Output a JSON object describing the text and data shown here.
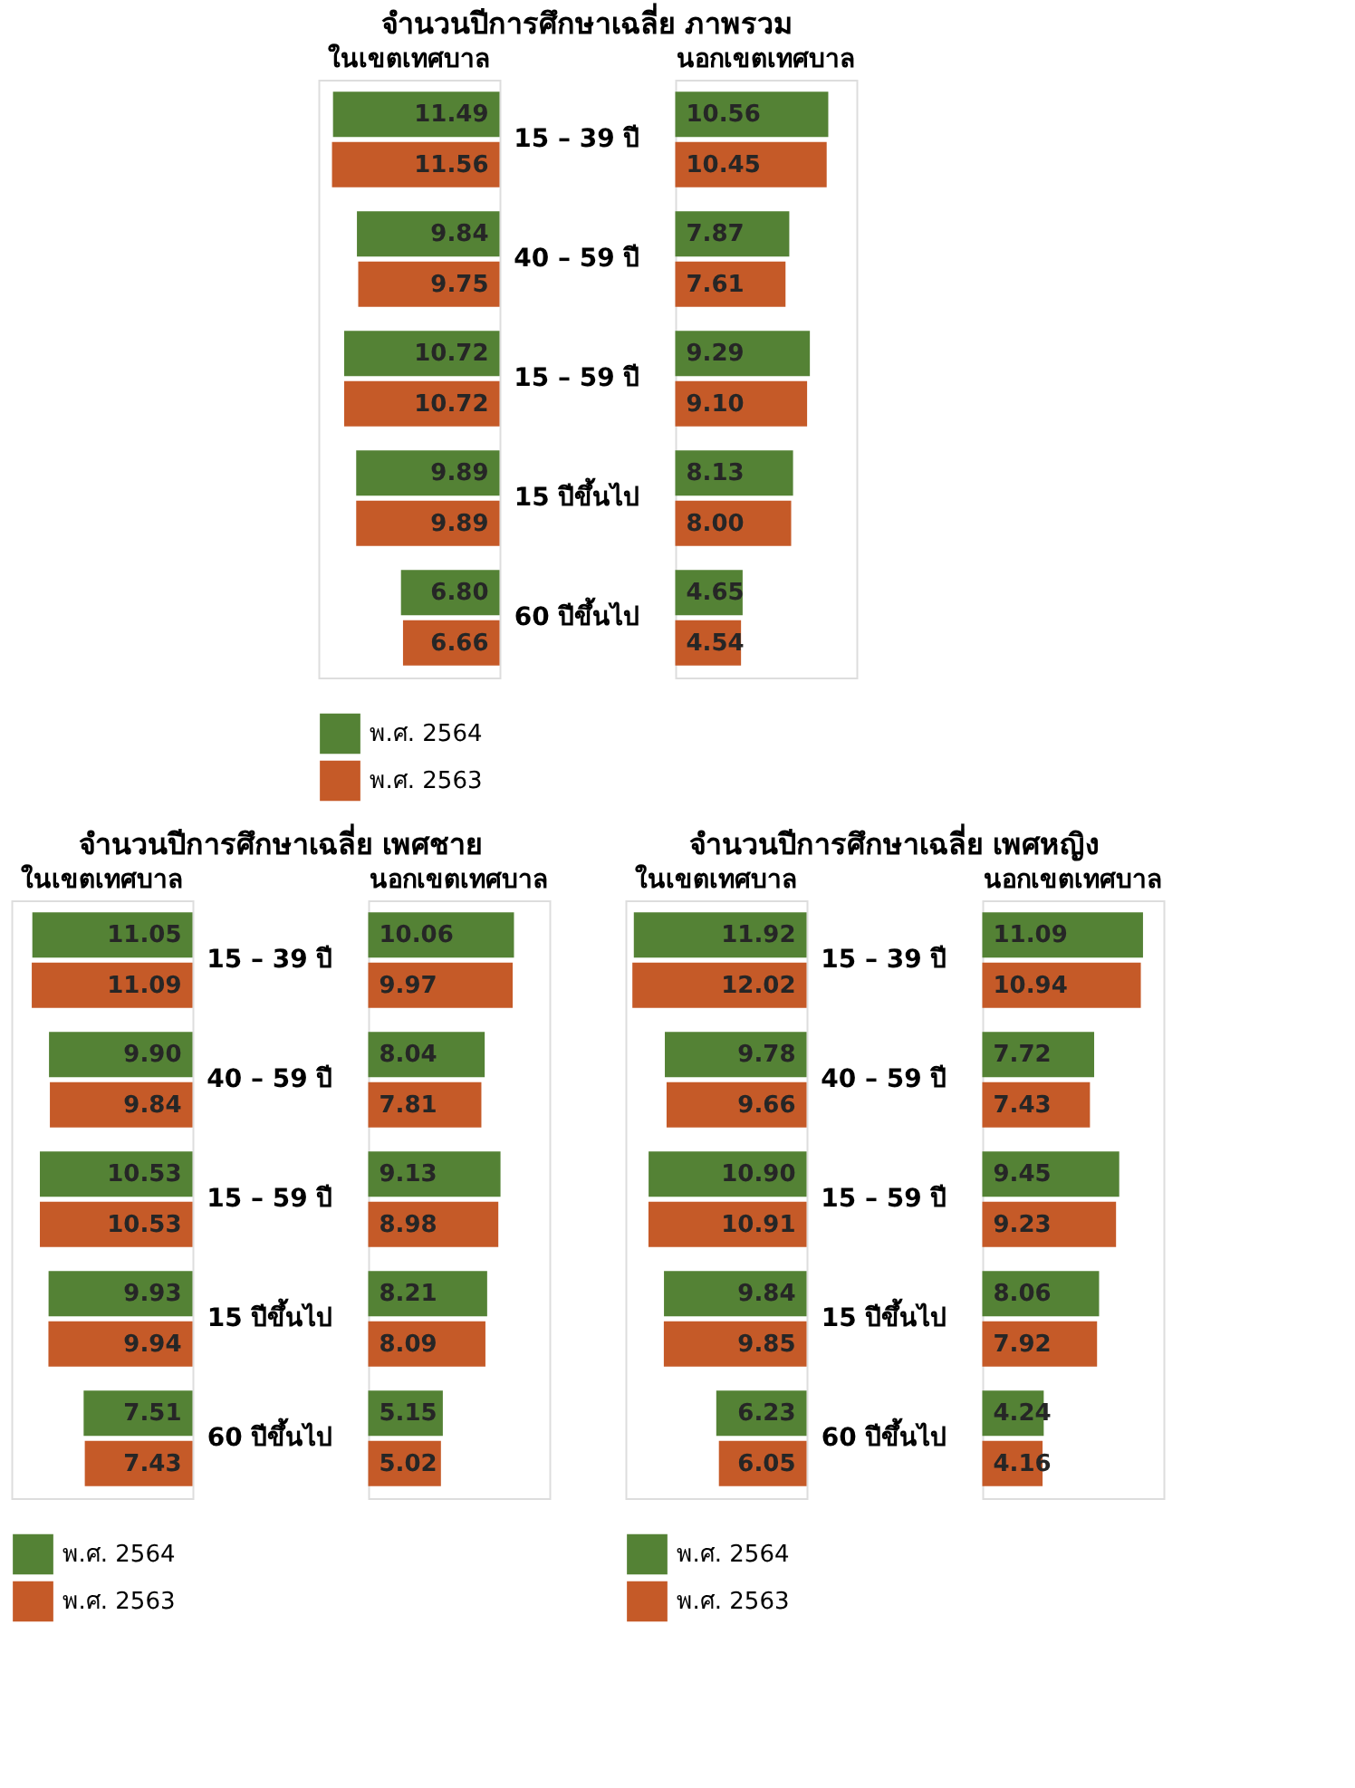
{
  "chart_data": [
    {
      "type": "bar",
      "orientation": "horizontal",
      "title": "จำนวนปีการศึกษาเฉลี่ย ภาพรวม",
      "subtitle": "ในเขตเทศบาล",
      "categories": [
        "15 – 39 ปี",
        "40 – 59 ปี",
        "15 – 59 ปี",
        "15 ปีขึ้นไป",
        "60 ปีขึ้นไป"
      ],
      "xlim": [
        12.5,
        0
      ],
      "tick_labels": false,
      "data_labels": true,
      "legend": "bottom",
      "series": [
        {
          "name": "พ.ศ. 2564",
          "color": "#548235",
          "values": [
            11.49,
            9.84,
            10.72,
            9.89,
            6.8
          ],
          "value_labels": [
            "11.49",
            "9.84",
            "10.72",
            "9.89",
            "6.80"
          ]
        },
        {
          "name": "พ.ศ. 2563",
          "color": "#c55a28",
          "values": [
            11.56,
            9.75,
            10.72,
            9.89,
            6.66
          ]
        }
      ]
    },
    {
      "type": "bar",
      "orientation": "horizontal",
      "subtitle": "นอกเขตเทศบาล",
      "categories": [
        "15 – 39 ปี",
        "40 – 59 ปี",
        "15 – 59 ปี",
        "15 ปีขึ้นไป",
        "60 ปีขึ้นไป"
      ],
      "xlim": [
        0,
        12.5
      ],
      "tick_labels": "y",
      "data_labels": true,
      "legend": "bottom",
      "series": [
        {
          "name": "พ.ศ. 2564",
          "color": "#548235",
          "values": [
            10.56,
            7.87,
            9.29,
            8.13,
            4.65
          ]
        },
        {
          "name": "พ.ศ. 2563",
          "color": "#c55a28",
          "values": [
            10.45,
            7.61,
            9.1,
            8.0,
            4.54
          ],
          "value_labels": [
            "10.45",
            "7.61",
            "9.10",
            "8.00",
            "4.54"
          ]
        }
      ]
    },
    {
      "type": "bar",
      "orientation": "horizontal",
      "title": "จำนวนปีการศึกษาเฉลี่ย เพศชาย",
      "subtitle": "ในเขตเทศบาล",
      "categories": [
        "15 – 39 ปี",
        "40 – 59 ปี",
        "15 – 59 ปี",
        "15 ปีขึ้นไป",
        "60 ปีขึ้นไป"
      ],
      "xlim": [
        12.5,
        0
      ],
      "tick_labels": false,
      "data_labels": true,
      "legend": "bottom",
      "series": [
        {
          "name": "พ.ศ. 2564",
          "color": "#548235",
          "values": [
            11.05,
            9.9,
            10.53,
            9.93,
            7.51
          ],
          "value_labels": [
            "11.05",
            "9.90",
            "10.53",
            "9.93",
            "7.51"
          ]
        },
        {
          "name": "พ.ศ. 2563",
          "color": "#c55a28",
          "values": [
            11.09,
            9.84,
            10.53,
            9.94,
            7.43
          ]
        }
      ]
    },
    {
      "type": "bar",
      "orientation": "horizontal",
      "subtitle": "นอกเขตเทศบาล",
      "categories": [
        "15 – 39 ปี",
        "40 – 59 ปี",
        "15 – 59 ปี",
        "15 ปีขึ้นไป",
        "60 ปีขึ้นไป"
      ],
      "xlim": [
        0,
        12.5
      ],
      "tick_labels": "y",
      "data_labels": true,
      "legend": "bottom",
      "series": [
        {
          "name": "พ.ศ. 2564",
          "color": "#548235",
          "values": [
            10.06,
            8.04,
            9.13,
            8.21,
            5.15
          ]
        },
        {
          "name": "พ.ศ. 2563",
          "color": "#c55a28",
          "values": [
            9.97,
            7.81,
            8.98,
            8.09,
            5.02
          ]
        }
      ]
    },
    {
      "type": "bar",
      "orientation": "horizontal",
      "title": "จำนวนปีการศึกษาเฉลี่ย เพศหญิง",
      "subtitle": "ในเขตเทศบาล",
      "categories": [
        "15 – 39 ปี",
        "40 – 59 ปี",
        "15 – 59 ปี",
        "15 ปีขึ้นไป",
        "60 ปีขึ้นไป"
      ],
      "xlim": [
        12.5,
        0
      ],
      "tick_labels": false,
      "data_labels": true,
      "legend": "bottom",
      "series": [
        {
          "name": "พ.ศ. 2564",
          "color": "#548235",
          "values": [
            11.92,
            9.78,
            10.9,
            9.84,
            6.23
          ],
          "value_labels": [
            "11.92",
            "9.78",
            "10.90",
            "9.84",
            "6.23"
          ]
        },
        {
          "name": "พ.ศ. 2563",
          "color": "#c55a28",
          "values": [
            12.02,
            9.66,
            10.91,
            9.85,
            6.05
          ]
        }
      ]
    },
    {
      "type": "bar",
      "orientation": "horizontal",
      "subtitle": "นอกเขตเทศบาล",
      "categories": [
        "15 – 39 ปี",
        "40 – 59 ปี",
        "15 – 59 ปี",
        "15 ปีขึ้นไป",
        "60 ปีขึ้นไป"
      ],
      "xlim": [
        0,
        12.5
      ],
      "tick_labels": "y",
      "data_labels": true,
      "legend": "bottom",
      "series": [
        {
          "name": "พ.ศ. 2564",
          "color": "#548235",
          "values": [
            11.09,
            7.72,
            9.45,
            8.06,
            4.24
          ]
        },
        {
          "name": "พ.ศ. 2563",
          "color": "#c55a28",
          "values": [
            10.94,
            7.43,
            9.23,
            7.92,
            4.16
          ]
        }
      ]
    }
  ]
}
